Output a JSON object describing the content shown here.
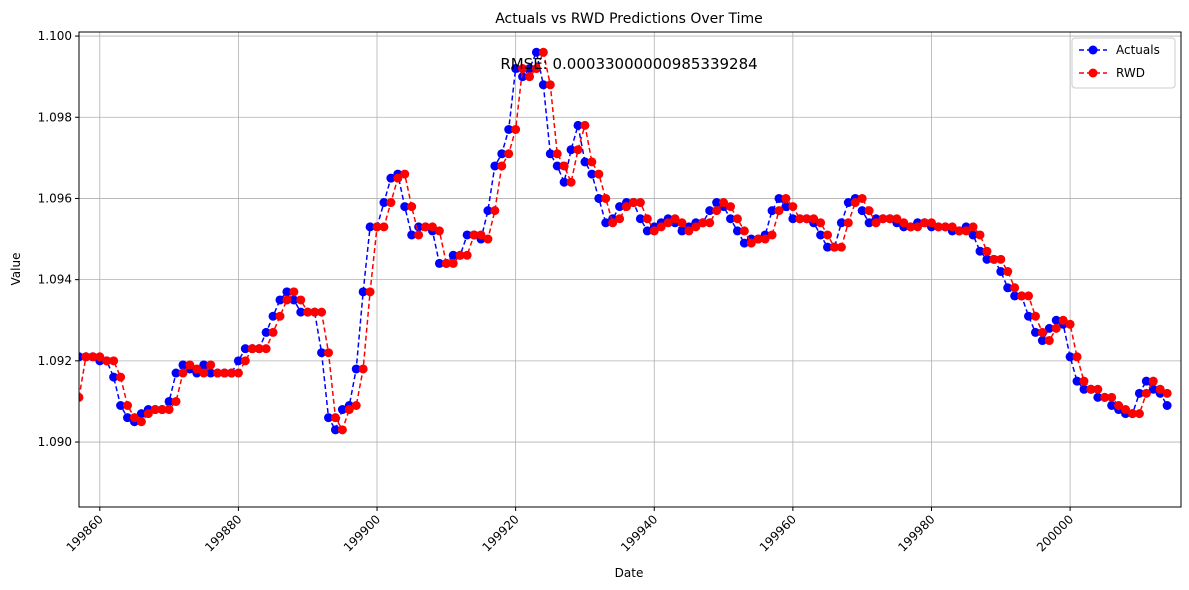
{
  "chart_data": {
    "type": "line",
    "title": "Actuals vs RWD Predictions Over Time",
    "xlabel": "Date",
    "ylabel": "Value",
    "annotation": "RMSE: 0.00033000000985339284",
    "xlim": [
      199857,
      200016
    ],
    "ylim": [
      1.0884,
      1.1001
    ],
    "x_ticks": [
      199860,
      199880,
      199900,
      199920,
      199940,
      199960,
      199980,
      200000
    ],
    "y_ticks": [
      1.09,
      1.092,
      1.094,
      1.096,
      1.098,
      1.1
    ],
    "grid": true,
    "legend_position": "top-right",
    "x_start": 199857,
    "series": [
      {
        "name": "Actuals",
        "color": "#0000ff",
        "values": [
          1.0921,
          1.0921,
          1.0921,
          1.092,
          1.092,
          1.0916,
          1.0909,
          1.0906,
          1.0905,
          1.0907,
          1.0908,
          1.0908,
          1.0908,
          1.091,
          1.0917,
          1.0919,
          1.0918,
          1.0917,
          1.0919,
          1.0917,
          1.0917,
          1.0917,
          1.0917,
          1.092,
          1.0923,
          1.0923,
          1.0923,
          1.0927,
          1.0931,
          1.0935,
          1.0937,
          1.0935,
          1.0932,
          1.0932,
          1.0932,
          1.0922,
          1.0906,
          1.0903,
          1.0908,
          1.0909,
          1.0918,
          1.0937,
          1.0953,
          1.0953,
          1.0959,
          1.0965,
          1.0966,
          1.0958,
          1.0951,
          1.0953,
          1.0953,
          1.0952,
          1.0944,
          1.0944,
          1.0946,
          1.0946,
          1.0951,
          1.0951,
          1.095,
          1.0957,
          1.0968,
          1.0971,
          1.0977,
          1.0992,
          1.099,
          1.0992,
          1.0996,
          1.0988,
          1.0971,
          1.0968,
          1.0964,
          1.0972,
          1.0978,
          1.0969,
          1.0966,
          1.096,
          1.0954,
          1.0955,
          1.0958,
          1.0959,
          1.0959,
          1.0955,
          1.0952,
          1.0953,
          1.0954,
          1.0955,
          1.0954,
          1.0952,
          1.0953,
          1.0954,
          1.0954,
          1.0957,
          1.0959,
          1.0958,
          1.0955,
          1.0952,
          1.0949,
          1.095,
          1.095,
          1.0951,
          1.0957,
          1.096,
          1.0958,
          1.0955,
          1.0955,
          1.0955,
          1.0954,
          1.0951,
          1.0948,
          1.0948,
          1.0954,
          1.0959,
          1.096,
          1.0957,
          1.0954,
          1.0955,
          1.0955,
          1.0955,
          1.0954,
          1.0953,
          1.0953,
          1.0954,
          1.0954,
          1.0953,
          1.0953,
          1.0953,
          1.0952,
          1.0952,
          1.0953,
          1.0951,
          1.0947,
          1.0945,
          1.0945,
          1.0942,
          1.0938,
          1.0936,
          1.0936,
          1.0931,
          1.0927,
          1.0925,
          1.0928,
          1.093,
          1.0929,
          1.0921,
          1.0915,
          1.0913,
          1.0913,
          1.0911,
          1.0911,
          1.0909,
          1.0908,
          1.0907,
          1.0907,
          1.0912,
          1.0915,
          1.0913,
          1.0912,
          1.0909
        ]
      },
      {
        "name": "RWD",
        "color": "#ff0000",
        "values": [
          1.0911,
          1.0921,
          1.0921,
          1.0921,
          1.092,
          1.092,
          1.0916,
          1.0909,
          1.0906,
          1.0905,
          1.0907,
          1.0908,
          1.0908,
          1.0908,
          1.091,
          1.0917,
          1.0919,
          1.0918,
          1.0917,
          1.0919,
          1.0917,
          1.0917,
          1.0917,
          1.0917,
          1.092,
          1.0923,
          1.0923,
          1.0923,
          1.0927,
          1.0931,
          1.0935,
          1.0937,
          1.0935,
          1.0932,
          1.0932,
          1.0932,
          1.0922,
          1.0906,
          1.0903,
          1.0908,
          1.0909,
          1.0918,
          1.0937,
          1.0953,
          1.0953,
          1.0959,
          1.0965,
          1.0966,
          1.0958,
          1.0951,
          1.0953,
          1.0953,
          1.0952,
          1.0944,
          1.0944,
          1.0946,
          1.0946,
          1.0951,
          1.0951,
          1.095,
          1.0957,
          1.0968,
          1.0971,
          1.0977,
          1.0992,
          1.099,
          1.0992,
          1.0996,
          1.0988,
          1.0971,
          1.0968,
          1.0964,
          1.0972,
          1.0978,
          1.0969,
          1.0966,
          1.096,
          1.0954,
          1.0955,
          1.0958,
          1.0959,
          1.0959,
          1.0955,
          1.0952,
          1.0953,
          1.0954,
          1.0955,
          1.0954,
          1.0952,
          1.0953,
          1.0954,
          1.0954,
          1.0957,
          1.0959,
          1.0958,
          1.0955,
          1.0952,
          1.0949,
          1.095,
          1.095,
          1.0951,
          1.0957,
          1.096,
          1.0958,
          1.0955,
          1.0955,
          1.0955,
          1.0954,
          1.0951,
          1.0948,
          1.0948,
          1.0954,
          1.0959,
          1.096,
          1.0957,
          1.0954,
          1.0955,
          1.0955,
          1.0955,
          1.0954,
          1.0953,
          1.0953,
          1.0954,
          1.0954,
          1.0953,
          1.0953,
          1.0953,
          1.0952,
          1.0952,
          1.0953,
          1.0951,
          1.0947,
          1.0945,
          1.0945,
          1.0942,
          1.0938,
          1.0936,
          1.0936,
          1.0931,
          1.0927,
          1.0925,
          1.0928,
          1.093,
          1.0929,
          1.0921,
          1.0915,
          1.0913,
          1.0913,
          1.0911,
          1.0911,
          1.0909,
          1.0908,
          1.0907,
          1.0907,
          1.0912,
          1.0915,
          1.0913,
          1.0912
        ]
      }
    ]
  }
}
